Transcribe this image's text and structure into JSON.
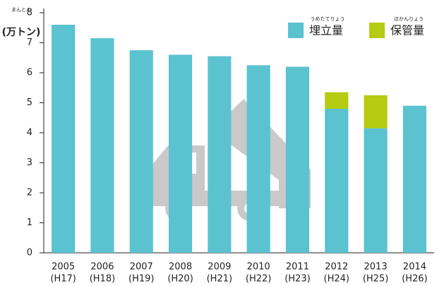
{
  "chart_data": {
    "type": "stacked_bar",
    "y_label": "(万トン)",
    "y_label_ruby": "まんとん",
    "categories": [
      "2005",
      "2006",
      "2007",
      "2008",
      "2009",
      "2010",
      "2011",
      "2012",
      "2013",
      "2014"
    ],
    "sub_categories": [
      "(H17)",
      "(H18)",
      "(H19)",
      "(H20)",
      "(H21)",
      "(H22)",
      "(H23)",
      "(H24)",
      "(H25)",
      "(H26)"
    ],
    "series": [
      {
        "name": "埋立量",
        "ruby": "うめたてりょう",
        "color": "#5bc2d0",
        "values": [
          7.6,
          7.15,
          6.75,
          6.6,
          6.55,
          6.25,
          6.2,
          4.8,
          4.15,
          4.9
        ]
      },
      {
        "name": "保管量",
        "ruby": "ほかんりょう",
        "color": "#b5cc12",
        "values": [
          null,
          null,
          null,
          null,
          null,
          null,
          null,
          0.55,
          1.1,
          null
        ]
      }
    ],
    "ylim": [
      0,
      8
    ],
    "yticks": [
      0,
      1,
      2,
      3,
      4,
      5,
      6,
      7,
      8
    ],
    "grid": false,
    "legend": "top-right"
  }
}
